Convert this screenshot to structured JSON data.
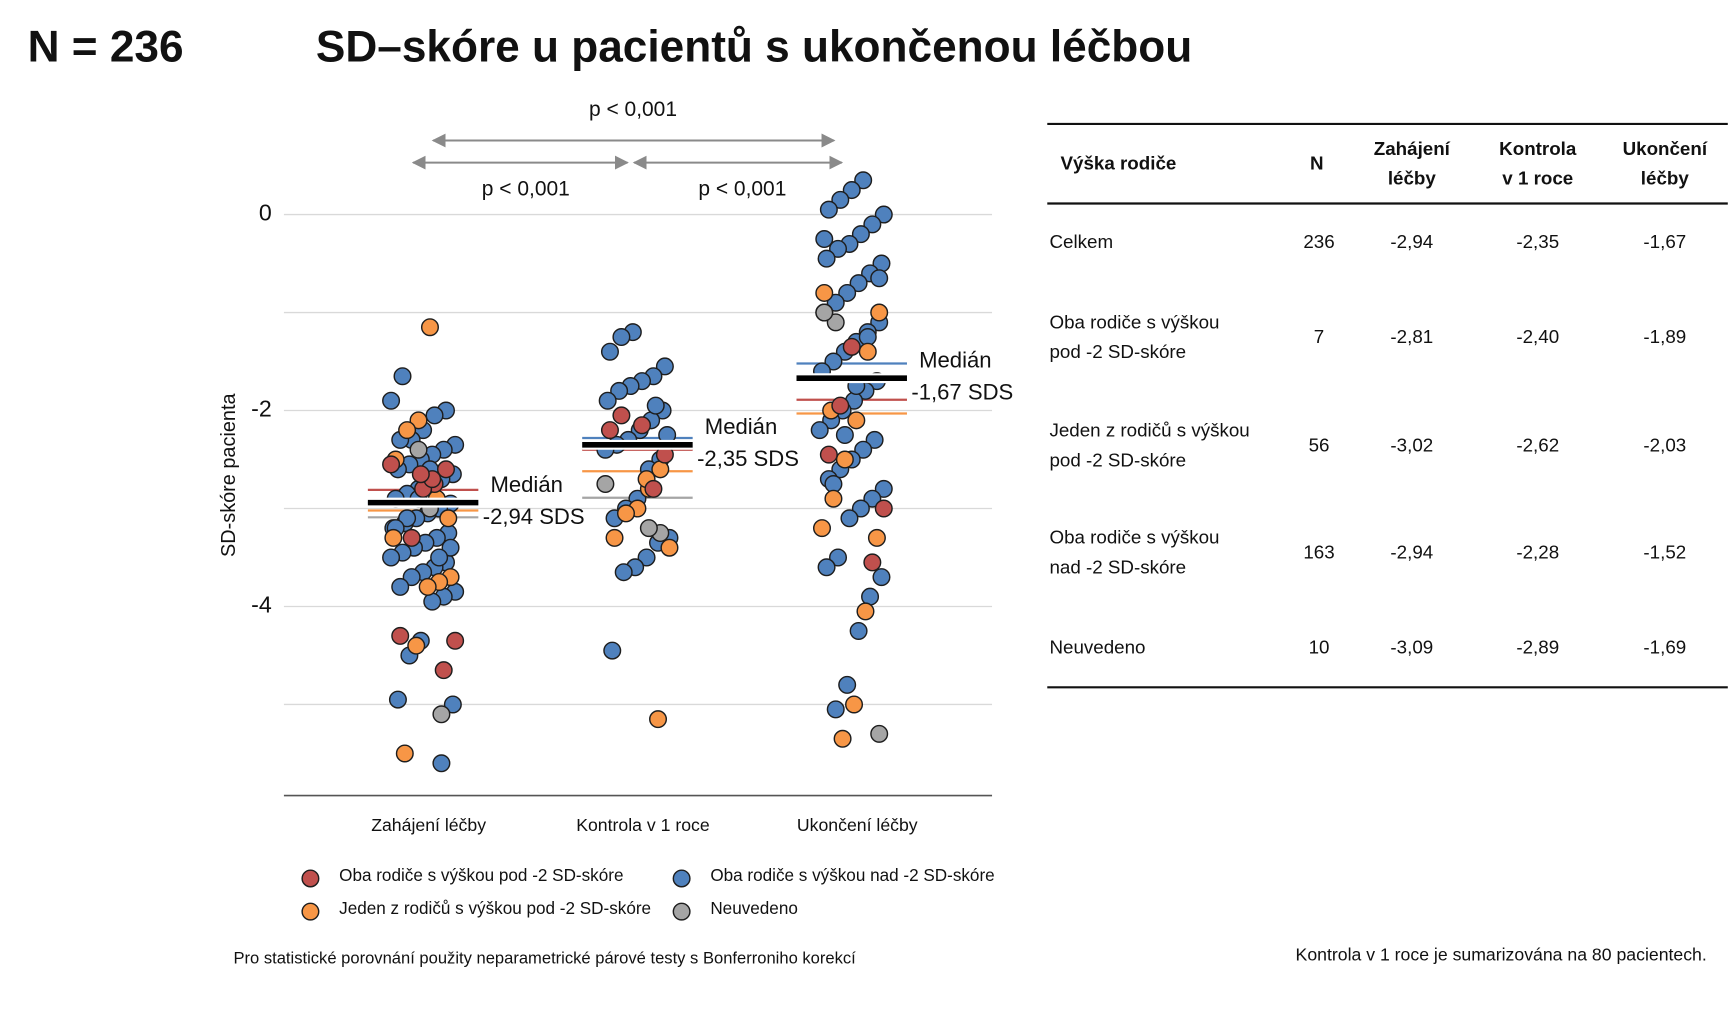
{
  "header": {
    "count": "N = 236",
    "title": "SD–skóre u pacientů s ukončenou léčbou"
  },
  "chart_data": {
    "type": "strip",
    "y_label": "SD-skóre pacienta",
    "categories": [
      "Zahájení léčby",
      "Kontrola v 1 roce",
      "Ukončení léčby"
    ],
    "ylim": [
      -5.93,
      0.35
    ],
    "yticks": [
      0,
      -2,
      -4
    ],
    "ygrid": [
      0,
      -1,
      -2,
      -3,
      -4,
      -5
    ],
    "p_values": [
      "p < 0,001",
      "p < 0,001",
      "p < 0,001"
    ],
    "median_label": "Medián",
    "median_value_labels": [
      "-2,94 SDS",
      "-2,35 SDS",
      "-1,67 SDS"
    ],
    "series": [
      {
        "name": "Oba rodiče s výškou pod -2 SD-skóre",
        "color": "#c0504d",
        "values": [
          [
            -2.55,
            -2.6,
            -2.75,
            -2.8,
            -3.3,
            -4.3,
            -4.35,
            -4.65,
            -2.7,
            -2.65
          ],
          [
            -2.05,
            -2.2,
            -2.45,
            -2.8,
            -2.15
          ],
          [
            -1.35,
            -1.95,
            -2.45,
            -3.0,
            -3.55
          ]
        ]
      },
      {
        "name": "Jeden z rodičů s výškou pod -2 SD-skóre",
        "color": "#f79646",
        "values": [
          [
            -1.15,
            -2.1,
            -2.2,
            -2.5,
            -3.7,
            -3.75,
            -3.8,
            -4.4,
            -5.5,
            -3.3,
            -3.1,
            -2.9
          ],
          [
            -2.6,
            -2.8,
            -3.0,
            -3.05,
            -3.3,
            -3.4,
            -5.15,
            -2.7
          ],
          [
            -0.8,
            -1.0,
            -1.4,
            -2.1,
            -2.5,
            -2.9,
            -3.2,
            -3.3,
            -4.05,
            -5.0,
            -5.35,
            -2.0
          ]
        ]
      },
      {
        "name": "Oba rodiče s výškou nad -2 SD-skóre",
        "color": "#4f81bd",
        "values": [
          [
            -1.65,
            -1.9,
            -2.0,
            -2.05,
            -2.2,
            -2.3,
            -2.3,
            -2.35,
            -2.4,
            -2.45,
            -2.5,
            -2.55,
            -2.6,
            -2.65,
            -2.7,
            -2.75,
            -2.8,
            -2.85,
            -2.9,
            -2.95,
            -3.0,
            -3.05,
            -3.1,
            -3.15,
            -3.2,
            -3.25,
            -3.3,
            -3.35,
            -3.4,
            -3.45,
            -3.5,
            -3.55,
            -3.6,
            -3.65,
            -3.7,
            -3.8,
            -3.85,
            -3.9,
            -3.95,
            -4.35,
            -4.5,
            -4.95,
            -5.0,
            -5.6,
            -2.6,
            -2.9,
            -3.1,
            -3.2,
            -3.4,
            -3.5
          ],
          [
            -1.2,
            -1.25,
            -1.4,
            -1.55,
            -1.65,
            -1.7,
            -1.75,
            -1.8,
            -1.9,
            -2.0,
            -2.1,
            -2.2,
            -2.3,
            -2.35,
            -2.4,
            -2.5,
            -2.6,
            -2.9,
            -3.0,
            -3.1,
            -3.3,
            -3.35,
            -3.5,
            -3.6,
            -3.65,
            -4.45,
            -2.25,
            -1.95
          ],
          [
            0.35,
            0.25,
            0.15,
            0.05,
            0.0,
            -0.1,
            -0.2,
            -0.3,
            -0.35,
            -0.45,
            -0.5,
            -0.6,
            -0.7,
            -0.8,
            -0.9,
            -1.0,
            -1.1,
            -1.2,
            -1.3,
            -1.4,
            -1.5,
            -1.6,
            -1.7,
            -1.8,
            -1.9,
            -2.0,
            -2.1,
            -2.2,
            -2.3,
            -2.4,
            -2.5,
            -2.6,
            -2.7,
            -2.8,
            -2.9,
            -3.0,
            -3.1,
            -3.5,
            -3.6,
            -3.7,
            -3.9,
            -4.25,
            -4.8,
            -5.05,
            -0.25,
            -0.65,
            -1.25,
            -1.75,
            -2.25,
            -2.75
          ]
        ]
      },
      {
        "name": "Neuvedeno",
        "color": "#a5a5a5",
        "values": [
          [
            -5.1,
            -3.0,
            -2.4
          ],
          [
            -2.75,
            -3.25,
            -3.2
          ],
          [
            -1.1,
            -1.0,
            -5.3
          ]
        ]
      }
    ]
  },
  "table": {
    "header": [
      [
        "Výška rodiče"
      ],
      [
        "N"
      ],
      [
        "Zahájení",
        "léčby"
      ],
      [
        "Kontrola",
        "v 1 roce"
      ],
      [
        "Ukončení",
        "léčby"
      ]
    ],
    "rows": [
      [
        [
          "Celkem"
        ],
        236,
        {
          "value": -2.94,
          "label": "-2,94"
        },
        {
          "value": -2.35,
          "label": "-2,35"
        },
        {
          "value": -1.67,
          "label": "-1,67"
        }
      ],
      [
        [
          "Oba rodiče s výškou",
          "pod -2 SD-skóre"
        ],
        7,
        {
          "value": -2.81,
          "label": "-2,81"
        },
        {
          "value": -2.4,
          "label": "-2,40"
        },
        {
          "value": -1.89,
          "label": "-1,89"
        }
      ],
      [
        [
          "Jeden z rodičů s výškou",
          "pod -2 SD-skóre"
        ],
        56,
        {
          "value": -3.02,
          "label": "-3,02"
        },
        {
          "value": -2.62,
          "label": "-2,62"
        },
        {
          "value": -2.03,
          "label": "-2,03"
        }
      ],
      [
        [
          "Oba rodiče s výškou",
          "nad -2 SD-skóre"
        ],
        163,
        {
          "value": -2.94,
          "label": "-2,94"
        },
        {
          "value": -2.28,
          "label": "-2,28"
        },
        {
          "value": -1.52,
          "label": "-1,52"
        }
      ],
      [
        [
          "Neuvedeno"
        ],
        10,
        {
          "value": -3.09,
          "label": "-3,09"
        },
        {
          "value": -2.89,
          "label": "-2,89"
        },
        {
          "value": -1.69,
          "label": "-1,69"
        }
      ]
    ]
  },
  "footnotes": {
    "left": "Pro statistické porovnání použity neparametrické párové testy s Bonferroniho korekcí",
    "right": "Kontrola v 1 roce je sumarizována na 80 pacientech."
  }
}
